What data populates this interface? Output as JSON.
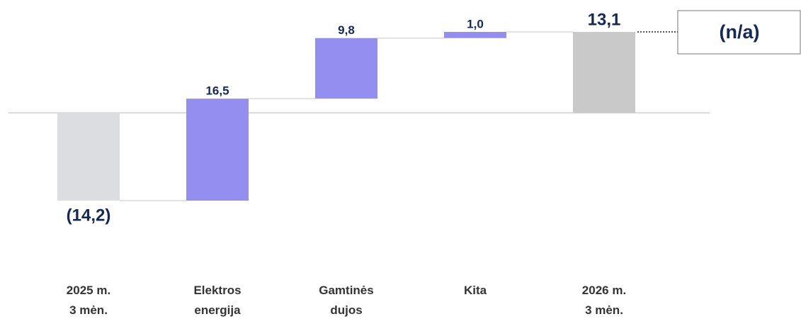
{
  "chart_data": {
    "type": "waterfall",
    "categories": [
      "2025 m.\n3 mėn.",
      "Elektros\nenergija",
      "Gamtinės\ndujos",
      "Kita",
      "2026 m.\n3 mėn."
    ],
    "values": [
      -14.2,
      16.5,
      9.8,
      1.0,
      13.1
    ],
    "value_labels": [
      "(14,2)",
      "16,5",
      "9,8",
      "1,0",
      "13,1"
    ],
    "measures": [
      "total",
      "relative",
      "relative",
      "relative",
      "total"
    ],
    "colors": [
      "#dcdde0",
      "#948ef0",
      "#948ef0",
      "#948ef0",
      "#c9c9c9"
    ],
    "annotation": "(n/a)"
  }
}
